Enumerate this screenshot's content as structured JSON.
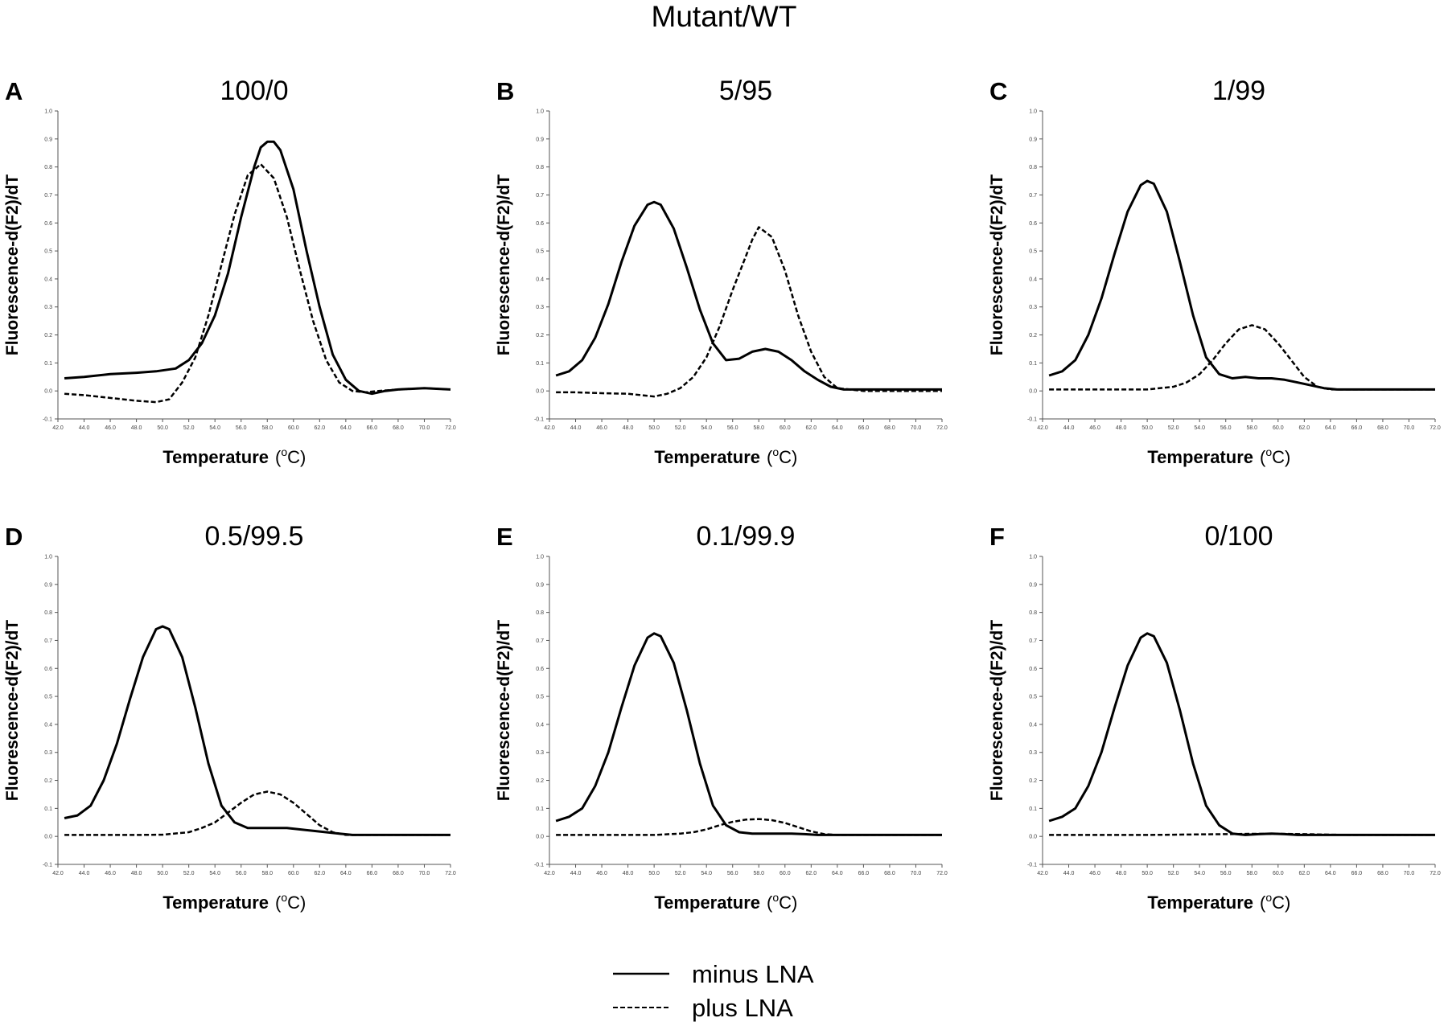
{
  "figure_title": "Mutant/WT",
  "legend": {
    "items": [
      {
        "label": "minus LNA",
        "style": "solid"
      },
      {
        "label": "plus LNA",
        "style": "dashed"
      }
    ],
    "placement": "bottom-center"
  },
  "chart_data": [
    {
      "panel": "A",
      "title": "100/0",
      "type": "line",
      "ylabel": "Fluorescence-d(F2)/dT",
      "xlabel": "Temperature",
      "xlabel_unit": "(oC)",
      "xlim": [
        42,
        72
      ],
      "ylim": [
        -0.1,
        1.0
      ],
      "xticks": [
        "42.0",
        "44.0",
        "46.0",
        "48.0",
        "50.0",
        "52.0",
        "54.0",
        "56.0",
        "58.0",
        "60.0",
        "62.0",
        "64.0",
        "66.0",
        "68.0",
        "70.0",
        "72.0"
      ],
      "yticks": [
        "-0.1",
        "0.0",
        "0.1",
        "0.2",
        "0.3",
        "0.4",
        "0.5",
        "0.6",
        "0.7",
        "0.8",
        "0.9",
        "1.0"
      ],
      "series": [
        {
          "name": "minus LNA",
          "style": "solid",
          "x": [
            42.5,
            44,
            46,
            48,
            49.5,
            51,
            52,
            53,
            54,
            55,
            56,
            57,
            57.5,
            58,
            58.5,
            59,
            60,
            61,
            62,
            63,
            64,
            65,
            66,
            67,
            68,
            70,
            72
          ],
          "y": [
            0.045,
            0.05,
            0.06,
            0.065,
            0.07,
            0.08,
            0.11,
            0.17,
            0.27,
            0.42,
            0.62,
            0.8,
            0.87,
            0.89,
            0.89,
            0.86,
            0.72,
            0.5,
            0.3,
            0.13,
            0.04,
            0.0,
            -0.01,
            0.0,
            0.005,
            0.01,
            0.005
          ]
        },
        {
          "name": "plus LNA",
          "style": "dashed",
          "x": [
            42.5,
            44,
            46,
            48,
            49.5,
            50.5,
            51.5,
            52.5,
            53.5,
            54.5,
            55.5,
            56.5,
            57.5,
            58.5,
            59.5,
            60.5,
            61.5,
            62.5,
            63.5,
            64.5,
            65.5,
            66.5,
            68,
            70,
            72
          ],
          "y": [
            -0.01,
            -0.015,
            -0.025,
            -0.035,
            -0.04,
            -0.03,
            0.03,
            0.12,
            0.27,
            0.45,
            0.63,
            0.77,
            0.81,
            0.76,
            0.62,
            0.43,
            0.25,
            0.11,
            0.03,
            0.0,
            -0.005,
            0.0,
            0.005,
            0.01,
            0.005
          ]
        }
      ]
    },
    {
      "panel": "B",
      "title": "5/95",
      "type": "line",
      "ylabel": "Fluorescence-d(F2)/dT",
      "xlabel": "Temperature",
      "xlabel_unit": "(oC)",
      "xlim": [
        42,
        72
      ],
      "ylim": [
        -0.1,
        1.0
      ],
      "xticks": [
        "42.0",
        "44.0",
        "46.0",
        "48.0",
        "50.0",
        "52.0",
        "54.0",
        "56.0",
        "58.0",
        "60.0",
        "62.0",
        "64.0",
        "66.0",
        "68.0",
        "70.0",
        "72.0"
      ],
      "yticks": [
        "-0.1",
        "0.0",
        "0.1",
        "0.2",
        "0.3",
        "0.4",
        "0.5",
        "0.6",
        "0.7",
        "0.8",
        "0.9",
        "1.0"
      ],
      "series": [
        {
          "name": "minus LNA",
          "style": "solid",
          "x": [
            42.5,
            43.5,
            44.5,
            45.5,
            46.5,
            47.5,
            48.5,
            49.5,
            50,
            50.5,
            51.5,
            52.5,
            53.5,
            54.5,
            55.5,
            56.5,
            57.5,
            58.5,
            59.5,
            60.5,
            61.5,
            62.5,
            63.5,
            64.5,
            66,
            68,
            70,
            72
          ],
          "y": [
            0.055,
            0.07,
            0.11,
            0.19,
            0.31,
            0.46,
            0.59,
            0.665,
            0.675,
            0.665,
            0.58,
            0.44,
            0.29,
            0.17,
            0.11,
            0.115,
            0.14,
            0.15,
            0.14,
            0.11,
            0.07,
            0.04,
            0.015,
            0.005,
            0.005,
            0.005,
            0.005,
            0.005
          ]
        },
        {
          "name": "plus LNA",
          "style": "dashed",
          "x": [
            42.5,
            44,
            46,
            48,
            50,
            51,
            52,
            53,
            54,
            55,
            56,
            57,
            57.5,
            58,
            59,
            60,
            61,
            62,
            63,
            64,
            66,
            68,
            70,
            72
          ],
          "y": [
            -0.005,
            -0.005,
            -0.008,
            -0.01,
            -0.02,
            -0.01,
            0.01,
            0.05,
            0.12,
            0.23,
            0.36,
            0.48,
            0.54,
            0.585,
            0.55,
            0.43,
            0.27,
            0.14,
            0.05,
            0.01,
            0.0,
            0.0,
            0.0,
            0.0
          ]
        }
      ]
    },
    {
      "panel": "C",
      "title": "1/99",
      "type": "line",
      "ylabel": "Fluorescence-d(F2)/dT",
      "xlabel": "Temperature",
      "xlabel_unit": "(oC)",
      "xlim": [
        42,
        72
      ],
      "ylim": [
        -0.1,
        1.0
      ],
      "xticks": [
        "42.0",
        "44.0",
        "46.0",
        "48.0",
        "50.0",
        "52.0",
        "54.0",
        "56.0",
        "58.0",
        "60.0",
        "62.0",
        "64.0",
        "66.0",
        "68.0",
        "70.0",
        "72.0"
      ],
      "yticks": [
        "-0.1",
        "0.0",
        "0.1",
        "0.2",
        "0.3",
        "0.4",
        "0.5",
        "0.6",
        "0.7",
        "0.8",
        "0.9",
        "1.0"
      ],
      "series": [
        {
          "name": "minus LNA",
          "style": "solid",
          "x": [
            42.5,
            43.5,
            44.5,
            45.5,
            46.5,
            47.5,
            48.5,
            49.5,
            50,
            50.5,
            51.5,
            52.5,
            53.5,
            54.5,
            55.5,
            56.5,
            57.5,
            58.5,
            59.5,
            60.5,
            61.5,
            62.5,
            63.5,
            64.5,
            66,
            68,
            70,
            72
          ],
          "y": [
            0.055,
            0.07,
            0.11,
            0.2,
            0.33,
            0.49,
            0.64,
            0.735,
            0.75,
            0.74,
            0.64,
            0.46,
            0.27,
            0.12,
            0.06,
            0.045,
            0.05,
            0.045,
            0.045,
            0.04,
            0.03,
            0.02,
            0.01,
            0.005,
            0.005,
            0.005,
            0.005,
            0.005
          ]
        },
        {
          "name": "plus LNA",
          "style": "dashed",
          "x": [
            42.5,
            44,
            46,
            48,
            50,
            52,
            53,
            54,
            55,
            56,
            57,
            58,
            59,
            60,
            61,
            62,
            63,
            64,
            66,
            68,
            70,
            72
          ],
          "y": [
            0.005,
            0.005,
            0.005,
            0.005,
            0.005,
            0.015,
            0.03,
            0.06,
            0.11,
            0.17,
            0.22,
            0.235,
            0.22,
            0.17,
            0.11,
            0.05,
            0.015,
            0.005,
            0.005,
            0.005,
            0.005,
            0.005
          ]
        }
      ]
    },
    {
      "panel": "D",
      "title": "0.5/99.5",
      "type": "line",
      "ylabel": "Fluorescence-d(F2)/dT",
      "xlabel": "Temperature",
      "xlabel_unit": "(oC)",
      "xlim": [
        42,
        72
      ],
      "ylim": [
        -0.1,
        1.0
      ],
      "xticks": [
        "42.0",
        "44.0",
        "46.0",
        "48.0",
        "50.0",
        "52.0",
        "54.0",
        "56.0",
        "58.0",
        "60.0",
        "62.0",
        "64.0",
        "66.0",
        "68.0",
        "70.0",
        "72.0"
      ],
      "yticks": [
        "-0.1",
        "0.0",
        "0.1",
        "0.2",
        "0.3",
        "0.4",
        "0.5",
        "0.6",
        "0.7",
        "0.8",
        "0.9",
        "1.0"
      ],
      "series": [
        {
          "name": "minus LNA",
          "style": "solid",
          "x": [
            42.5,
            43.5,
            44.5,
            45.5,
            46.5,
            47.5,
            48.5,
            49.5,
            50,
            50.5,
            51.5,
            52.5,
            53.5,
            54.5,
            55.5,
            56.5,
            57.5,
            58.5,
            59.5,
            60.5,
            61.5,
            62.5,
            63.5,
            64.5,
            66,
            68,
            70,
            72
          ],
          "y": [
            0.065,
            0.075,
            0.11,
            0.2,
            0.33,
            0.49,
            0.64,
            0.74,
            0.75,
            0.74,
            0.64,
            0.46,
            0.26,
            0.11,
            0.05,
            0.03,
            0.03,
            0.03,
            0.03,
            0.025,
            0.02,
            0.015,
            0.01,
            0.005,
            0.005,
            0.005,
            0.005,
            0.005
          ]
        },
        {
          "name": "plus LNA",
          "style": "dashed",
          "x": [
            42.5,
            44,
            46,
            48,
            50,
            52,
            53,
            54,
            55,
            56,
            57,
            58,
            59,
            60,
            61,
            62,
            63,
            64,
            66,
            68,
            70,
            72
          ],
          "y": [
            0.005,
            0.005,
            0.005,
            0.005,
            0.006,
            0.015,
            0.03,
            0.05,
            0.085,
            0.12,
            0.15,
            0.16,
            0.15,
            0.12,
            0.08,
            0.04,
            0.015,
            0.005,
            0.005,
            0.005,
            0.005,
            0.005
          ]
        }
      ]
    },
    {
      "panel": "E",
      "title": "0.1/99.9",
      "type": "line",
      "ylabel": "Fluorescence-d(F2)/dT",
      "xlabel": "Temperature",
      "xlabel_unit": "(oC)",
      "xlim": [
        42,
        72
      ],
      "ylim": [
        -0.1,
        1.0
      ],
      "xticks": [
        "42.0",
        "44.0",
        "46.0",
        "48.0",
        "50.0",
        "52.0",
        "54.0",
        "56.0",
        "58.0",
        "60.0",
        "62.0",
        "64.0",
        "66.0",
        "68.0",
        "70.0",
        "72.0"
      ],
      "yticks": [
        "-0.1",
        "0.0",
        "0.1",
        "0.2",
        "0.3",
        "0.4",
        "0.5",
        "0.6",
        "0.7",
        "0.8",
        "0.9",
        "1.0"
      ],
      "series": [
        {
          "name": "minus LNA",
          "style": "solid",
          "x": [
            42.5,
            43.5,
            44.5,
            45.5,
            46.5,
            47.5,
            48.5,
            49.5,
            50,
            50.5,
            51.5,
            52.5,
            53.5,
            54.5,
            55.5,
            56.5,
            57.5,
            58.5,
            59.5,
            60.5,
            61.5,
            62.5,
            63.5,
            64.5,
            66,
            68,
            70,
            72
          ],
          "y": [
            0.055,
            0.07,
            0.1,
            0.18,
            0.3,
            0.46,
            0.61,
            0.71,
            0.725,
            0.715,
            0.62,
            0.45,
            0.26,
            0.11,
            0.04,
            0.015,
            0.01,
            0.01,
            0.01,
            0.01,
            0.008,
            0.005,
            0.005,
            0.005,
            0.005,
            0.005,
            0.005,
            0.005
          ]
        },
        {
          "name": "plus LNA",
          "style": "dashed",
          "x": [
            42.5,
            44,
            46,
            48,
            50,
            52,
            53,
            54,
            55,
            56,
            57,
            58,
            59,
            60,
            61,
            62,
            63,
            64,
            66,
            68,
            70,
            72
          ],
          "y": [
            0.005,
            0.005,
            0.005,
            0.005,
            0.005,
            0.01,
            0.015,
            0.025,
            0.04,
            0.052,
            0.06,
            0.062,
            0.058,
            0.048,
            0.033,
            0.018,
            0.008,
            0.005,
            0.005,
            0.005,
            0.005,
            0.005
          ]
        }
      ]
    },
    {
      "panel": "F",
      "title": "0/100",
      "type": "line",
      "ylabel": "Fluorescence-d(F2)/dT",
      "xlabel": "Temperature",
      "xlabel_unit": "(oC)",
      "xlim": [
        42,
        72
      ],
      "ylim": [
        -0.1,
        1.0
      ],
      "xticks": [
        "42.0",
        "44.0",
        "46.0",
        "48.0",
        "50.0",
        "52.0",
        "54.0",
        "56.0",
        "58.0",
        "60.0",
        "62.0",
        "64.0",
        "66.0",
        "68.0",
        "70.0",
        "72.0"
      ],
      "yticks": [
        "-0.1",
        "0.0",
        "0.1",
        "0.2",
        "0.3",
        "0.4",
        "0.5",
        "0.6",
        "0.7",
        "0.8",
        "0.9",
        "1.0"
      ],
      "series": [
        {
          "name": "minus LNA",
          "style": "solid",
          "x": [
            42.5,
            43.5,
            44.5,
            45.5,
            46.5,
            47.5,
            48.5,
            49.5,
            50,
            50.5,
            51.5,
            52.5,
            53.5,
            54.5,
            55.5,
            56.5,
            57.5,
            58.5,
            59.5,
            60.5,
            61.5,
            62.5,
            63.5,
            64.5,
            66,
            68,
            70,
            72
          ],
          "y": [
            0.055,
            0.07,
            0.1,
            0.18,
            0.3,
            0.46,
            0.61,
            0.71,
            0.725,
            0.715,
            0.62,
            0.45,
            0.26,
            0.11,
            0.04,
            0.01,
            0.005,
            0.008,
            0.01,
            0.008,
            0.005,
            0.005,
            0.005,
            0.005,
            0.005,
            0.005,
            0.005,
            0.005
          ]
        },
        {
          "name": "plus LNA",
          "style": "dashed",
          "x": [
            42.5,
            44,
            46,
            48,
            50,
            52,
            54,
            56,
            58,
            60,
            62,
            64,
            66,
            68,
            70,
            72
          ],
          "y": [
            0.005,
            0.005,
            0.005,
            0.005,
            0.005,
            0.006,
            0.007,
            0.008,
            0.009,
            0.009,
            0.008,
            0.006,
            0.005,
            0.005,
            0.005,
            0.005
          ]
        }
      ]
    }
  ]
}
